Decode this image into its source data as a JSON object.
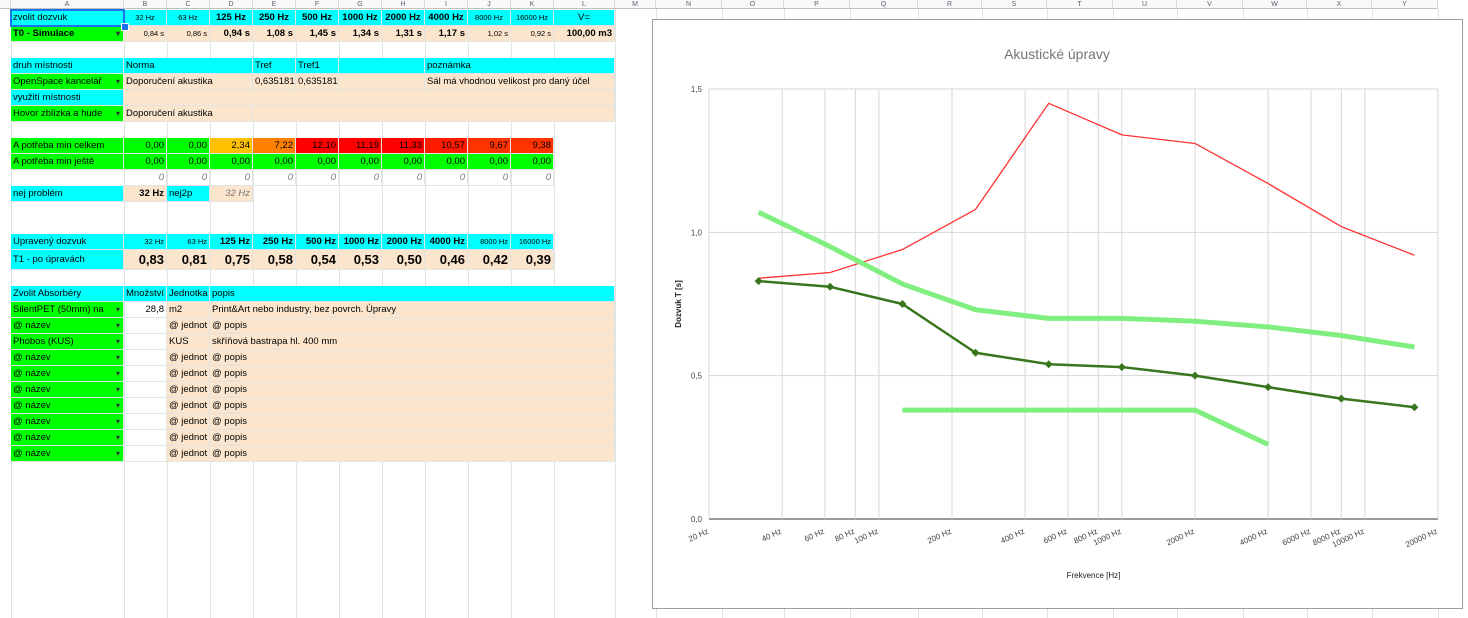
{
  "columns": [
    "A",
    "B",
    "C",
    "D",
    "E",
    "F",
    "G",
    "H",
    "I",
    "J",
    "K",
    "L",
    "M",
    "N",
    "O",
    "P",
    "Q",
    "R",
    "S",
    "T",
    "U",
    "V",
    "W",
    "X",
    "Y"
  ],
  "header_row": {
    "label": "zvolit dozvuk",
    "freqs": [
      "32 Hz",
      "63 Hz",
      "125 Hz",
      "250 Hz",
      "500 Hz",
      "1000 Hz",
      "2000 Hz",
      "4000 Hz",
      "8000 Hz",
      "16000 Hz"
    ],
    "last": "V="
  },
  "sim_row": {
    "label": "T0 - Simulace",
    "values": [
      "0,84 s",
      "0,86 s",
      "0,94 s",
      "1,08 s",
      "1,45 s",
      "1,34 s",
      "1,31 s",
      "1,17 s",
      "1,02 s",
      "0,92 s"
    ],
    "volume": "100,00 m3"
  },
  "room": {
    "hdr": [
      "druh místnosti",
      "Norma",
      "Tref",
      "Tref1",
      "poznámka"
    ],
    "type": "OpenSpace kancelář",
    "norm": "Doporučení akustika",
    "tref": "0,635181",
    "tref1": "0,635181",
    "note": "Sál má vhodnou velikost pro daný účel",
    "usage_label": "využití místnosti",
    "usage": "Hovor zblízka a hude",
    "usage_norm": "Doporučení akustika"
  },
  "need_total": {
    "label": "A potřeba min celkem",
    "values": [
      "0,00",
      "0,00",
      "2,34",
      "7,22",
      "12,10",
      "11,19",
      "11,33",
      "10,57",
      "9,67",
      "9,38"
    ],
    "colors": [
      "#00ff00",
      "#00ff00",
      "#ffc000",
      "#ff7f00",
      "#ff0000",
      "#ff0000",
      "#ff0000",
      "#ff1a00",
      "#ff3300",
      "#ff3300"
    ]
  },
  "need_more": {
    "label": "A potřeba min ještě",
    "values": [
      "0,00",
      "0,00",
      "0,00",
      "0,00",
      "0,00",
      "0,00",
      "0,00",
      "0,00",
      "0,00",
      "0,00"
    ]
  },
  "zeros_row": [
    "0",
    "0",
    "0",
    "0",
    "0",
    "0",
    "0",
    "0",
    "0",
    "0"
  ],
  "problem": {
    "label": "nej problém",
    "v1": "32 Hz",
    "label2": "nej2p",
    "v2": "32 Hz"
  },
  "adjusted_header": {
    "label": "Upravený dozvuk",
    "freqs": [
      "32 Hz",
      "63 Hz",
      "125 Hz",
      "250 Hz",
      "500 Hz",
      "1000 Hz",
      "2000 Hz",
      "4000 Hz",
      "8000 Hz",
      "16000 Hz"
    ]
  },
  "t1_row": {
    "label": "T1 - po úpravách",
    "values": [
      "0,83",
      "0,81",
      "0,75",
      "0,58",
      "0,54",
      "0,53",
      "0,50",
      "0,46",
      "0,42",
      "0,39"
    ]
  },
  "absorb_header": [
    "Zvolit Absorbéry",
    "Množství",
    "Jednotka",
    "popis"
  ],
  "absorbers": [
    {
      "name": "SilentPET (50mm) na",
      "qty": "28,8",
      "unit": "m2",
      "desc": "Print&Art nebo industry, bez povrch. Úpravy"
    },
    {
      "name": "@ název",
      "qty": "",
      "unit": "@ jednot",
      "desc": "@ popis"
    },
    {
      "name": "Phobos (KUS)",
      "qty": "",
      "unit": "KUS",
      "desc": "skříňová bastrapa hl. 400 mm"
    },
    {
      "name": "@ název",
      "qty": "",
      "unit": "@ jednot",
      "desc": "@ popis"
    },
    {
      "name": "@ název",
      "qty": "",
      "unit": "@ jednot",
      "desc": "@ popis"
    },
    {
      "name": "@ název",
      "qty": "",
      "unit": "@ jednot",
      "desc": "@ popis"
    },
    {
      "name": "@ název",
      "qty": "",
      "unit": "@ jednot",
      "desc": "@ popis"
    },
    {
      "name": "@ název",
      "qty": "",
      "unit": "@ jednot",
      "desc": "@ popis"
    },
    {
      "name": "@ název",
      "qty": "",
      "unit": "@ jednot",
      "desc": "@ popis"
    },
    {
      "name": "@ název",
      "qty": "",
      "unit": "@ jednot",
      "desc": "@ popis"
    }
  ],
  "colors": {
    "cyan": "#00ffff",
    "green": "#00ff00",
    "peach": "#fce5cd",
    "selection": "#1a73e8"
  },
  "chart_data": {
    "type": "line",
    "title": "Akustické úpravy",
    "xlabel": "Frekvence [Hz]",
    "ylabel": "Dozvuk T [s]",
    "x_scale": "log",
    "xlim": [
      20,
      20000
    ],
    "ylim": [
      0,
      1.5
    ],
    "x_ticks": [
      20,
      40,
      60,
      80,
      100,
      200,
      400,
      600,
      800,
      1000,
      2000,
      4000,
      6000,
      8000,
      10000,
      20000
    ],
    "x_tick_labels": [
      "20 Hz",
      "40 Hz",
      "60 Hz",
      "80 Hz",
      "100 Hz",
      "200 Hz",
      "400 Hz",
      "600 Hz",
      "800 Hz",
      "1000 Hz",
      "2000 Hz",
      "4000 Hz",
      "6000 Hz",
      "8000 Hz",
      "10000 Hz",
      "20000 Hz"
    ],
    "y_ticks": [
      0,
      0.5,
      1.0,
      1.5
    ],
    "y_tick_labels": [
      "0,0",
      "0,5",
      "1,0",
      "1,5"
    ],
    "grid": true,
    "legend": "none",
    "series": [
      {
        "color": "#ff3333",
        "width": 1.3,
        "markers": false,
        "x": [
          32,
          63,
          125,
          250,
          500,
          1000,
          2000,
          4000,
          8000,
          16000
        ],
        "y": [
          0.84,
          0.86,
          0.94,
          1.08,
          1.45,
          1.34,
          1.31,
          1.17,
          1.02,
          0.92
        ]
      },
      {
        "color": "#80ef80",
        "width": 5,
        "markers": false,
        "x": [
          32,
          63,
          125,
          250,
          500,
          1000,
          2000,
          4000,
          8000,
          16000
        ],
        "y": [
          1.07,
          0.95,
          0.82,
          0.73,
          0.7,
          0.7,
          0.69,
          0.67,
          0.64,
          0.6
        ]
      },
      {
        "color": "#80ef80",
        "width": 5,
        "markers": false,
        "x": [
          125,
          250,
          500,
          1000,
          2000,
          4000
        ],
        "y": [
          0.38,
          0.38,
          0.38,
          0.38,
          0.38,
          0.26
        ]
      },
      {
        "color": "#38761d",
        "width": 2.5,
        "markers": true,
        "x": [
          32,
          63,
          125,
          250,
          500,
          1000,
          2000,
          4000,
          8000,
          16000
        ],
        "y": [
          0.83,
          0.81,
          0.75,
          0.58,
          0.54,
          0.53,
          0.5,
          0.46,
          0.42,
          0.39
        ]
      }
    ]
  }
}
